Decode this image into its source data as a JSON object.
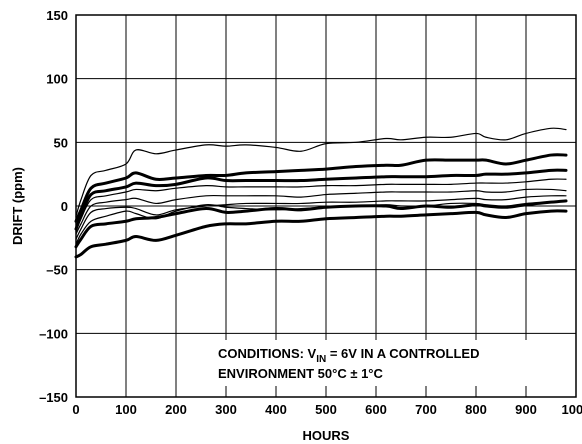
{
  "chart_data": {
    "type": "line",
    "title": "",
    "xlabel": "HOURS",
    "ylabel": "DRIFT (ppm)",
    "xlim": [
      0,
      1000
    ],
    "ylim": [
      -150,
      150
    ],
    "x_ticks": [
      0,
      100,
      200,
      300,
      400,
      500,
      600,
      700,
      800,
      900,
      1000
    ],
    "x_tick_labels": [
      "0",
      "100",
      "200",
      "300",
      "400",
      "500",
      "600",
      "700",
      "800",
      "900",
      "1000"
    ],
    "y_ticks": [
      -150,
      -100,
      -50,
      0,
      50,
      100,
      150
    ],
    "y_tick_labels": [
      "–150",
      "–100",
      "–50",
      "0",
      "50",
      "100",
      "150"
    ],
    "grid": true,
    "line_color": "#000000",
    "annotation": {
      "line1_prefix": "CONDITIONS: V",
      "line1_sub": "IN",
      "line1_suffix": " = 6V IN A CONTROLLED",
      "line2": "ENVIRONMENT 50°C ± 1°C"
    },
    "series": [
      {
        "weight": "thin",
        "x": [
          0,
          10,
          30,
          60,
          100,
          120,
          160,
          200,
          260,
          300,
          340,
          400,
          450,
          500,
          560,
          620,
          650,
          700,
          750,
          800,
          820,
          860,
          900,
          950,
          980
        ],
        "values": [
          -8,
          5,
          24,
          28,
          33,
          44,
          41,
          44,
          48,
          47,
          48,
          46,
          43,
          49,
          50,
          53,
          52,
          54,
          54,
          57,
          54,
          52,
          57,
          61,
          60
        ]
      },
      {
        "weight": "thick",
        "x": [
          0,
          10,
          30,
          60,
          100,
          120,
          160,
          200,
          260,
          300,
          340,
          400,
          450,
          500,
          560,
          620,
          650,
          700,
          750,
          800,
          820,
          860,
          900,
          950,
          980
        ],
        "values": [
          -12,
          -3,
          14,
          18,
          22,
          26,
          21,
          22,
          24,
          24,
          26,
          27,
          28,
          29,
          31,
          32,
          32,
          36,
          36,
          36,
          36,
          33,
          36,
          40,
          40
        ]
      },
      {
        "weight": "thick",
        "x": [
          0,
          10,
          30,
          60,
          100,
          120,
          160,
          200,
          260,
          300,
          340,
          400,
          450,
          500,
          560,
          620,
          650,
          700,
          750,
          800,
          820,
          860,
          900,
          950,
          980
        ],
        "values": [
          -18,
          -8,
          9,
          12,
          15,
          18,
          16,
          17,
          22,
          20,
          20,
          20,
          20,
          21,
          22,
          23,
          23,
          23,
          24,
          24,
          25,
          25,
          26,
          28,
          28
        ]
      },
      {
        "weight": "thin",
        "x": [
          0,
          10,
          30,
          60,
          100,
          120,
          160,
          200,
          260,
          300,
          340,
          400,
          450,
          500,
          560,
          620,
          650,
          700,
          750,
          800,
          820,
          860,
          900,
          950,
          980
        ],
        "values": [
          -20,
          -10,
          5,
          8,
          11,
          13,
          12,
          14,
          16,
          15,
          15,
          15,
          15,
          16,
          16,
          17,
          17,
          17,
          17,
          18,
          18,
          18,
          19,
          21,
          21
        ]
      },
      {
        "weight": "thin",
        "x": [
          0,
          10,
          30,
          60,
          100,
          120,
          160,
          200,
          260,
          300,
          340,
          400,
          450,
          500,
          560,
          620,
          650,
          700,
          750,
          800,
          820,
          860,
          900,
          950,
          980
        ],
        "values": [
          -22,
          -14,
          0,
          3,
          5,
          6,
          2,
          5,
          8,
          8,
          8,
          8,
          7,
          9,
          10,
          11,
          11,
          11,
          11,
          12,
          11,
          11,
          13,
          13,
          12
        ]
      },
      {
        "weight": "thin",
        "x": [
          0,
          10,
          30,
          60,
          100,
          120,
          160,
          200,
          260,
          300,
          340,
          400,
          450,
          500,
          560,
          620,
          650,
          700,
          750,
          800,
          820,
          860,
          900,
          950,
          980
        ],
        "values": [
          -26,
          -18,
          -5,
          -2,
          -1,
          -2,
          -7,
          -3,
          0,
          1,
          2,
          2,
          2,
          3,
          3,
          4,
          4,
          4,
          5,
          6,
          5,
          5,
          7,
          8,
          8
        ]
      },
      {
        "weight": "thin",
        "x": [
          0,
          10,
          30,
          60,
          100,
          120,
          160,
          200,
          260,
          300,
          340,
          400,
          450,
          500,
          560,
          620,
          650,
          700,
          750,
          800,
          820,
          860,
          900,
          950,
          980
        ],
        "values": [
          -30,
          -22,
          -12,
          -8,
          -4,
          -6,
          -10,
          -4,
          1,
          -1,
          -2,
          -3,
          -2,
          -1,
          0,
          1,
          0,
          0,
          2,
          2,
          1,
          0,
          2,
          3,
          4
        ]
      },
      {
        "weight": "thick",
        "x": [
          0,
          10,
          30,
          60,
          100,
          120,
          160,
          200,
          260,
          300,
          340,
          400,
          450,
          500,
          560,
          620,
          650,
          700,
          750,
          800,
          820,
          860,
          900,
          950,
          980
        ],
        "values": [
          -32,
          -26,
          -16,
          -14,
          -12,
          -10,
          -9,
          -6,
          -2,
          -5,
          -4,
          -2,
          -3,
          -1,
          0,
          0,
          -2,
          0,
          -1,
          1,
          0,
          -1,
          1,
          3,
          4
        ]
      },
      {
        "weight": "thick",
        "x": [
          0,
          10,
          30,
          60,
          100,
          120,
          160,
          200,
          260,
          300,
          340,
          400,
          450,
          500,
          560,
          620,
          650,
          700,
          750,
          800,
          820,
          860,
          900,
          950,
          980
        ],
        "values": [
          -40,
          -38,
          -32,
          -30,
          -27,
          -24,
          -27,
          -23,
          -16,
          -14,
          -14,
          -12,
          -12,
          -10,
          -9,
          -8,
          -8,
          -7,
          -6,
          -5,
          -7,
          -9,
          -6,
          -4,
          -4
        ]
      }
    ]
  }
}
